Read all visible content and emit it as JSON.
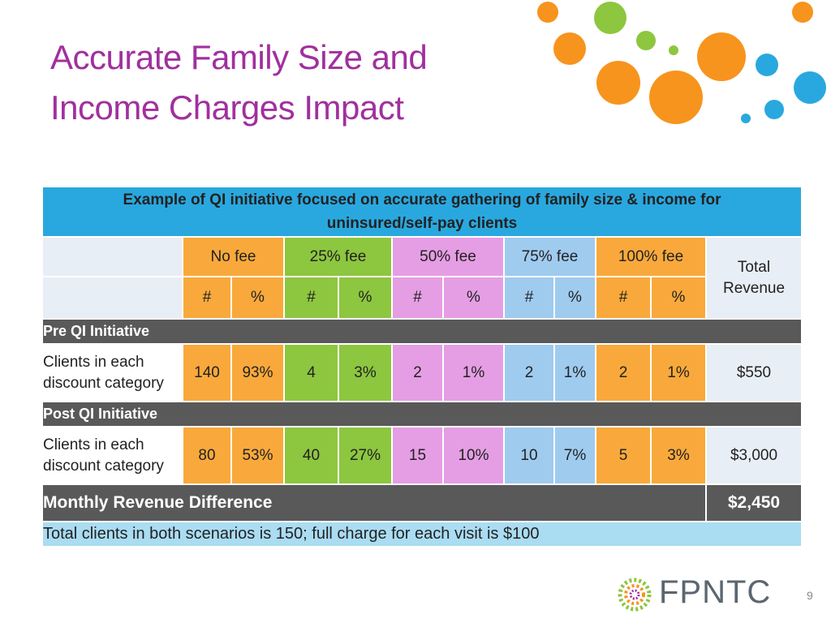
{
  "title_lines": [
    "Accurate Family Size and",
    "Income Charges Impact"
  ],
  "table": {
    "caption": "Example of QI initiative focused on accurate gathering of family size & income for uninsured/self-pay clients",
    "fee_levels": [
      "No fee",
      "25% fee",
      "50% fee",
      "75% fee",
      "100% fee"
    ],
    "sub_headers": [
      "#",
      "%",
      "#",
      "%",
      "#",
      "%",
      "#",
      "%",
      "#",
      "%"
    ],
    "total_header": "Total Revenue",
    "sections": [
      {
        "label": "Pre QI Initiative",
        "row_label": "Clients  in each discount category",
        "cells": [
          "140",
          "93%",
          "4",
          "3%",
          "2",
          "1%",
          "2",
          "1%",
          "2",
          "1%"
        ],
        "total": "$550"
      },
      {
        "label": "Post QI Initiative",
        "row_label": "Clients in each discount category",
        "cells": [
          "80",
          "53%",
          "40",
          "27%",
          "15",
          "10%",
          "10",
          "7%",
          "5",
          "3%"
        ],
        "total": "$3,000"
      }
    ],
    "difference": {
      "label": "Monthly Revenue Difference",
      "value": "$2,450"
    },
    "footnote": "Total clients in both scenarios is 150; full charge for each visit is $100"
  },
  "footer": {
    "logo": "FPNTC",
    "page_number": "9"
  }
}
